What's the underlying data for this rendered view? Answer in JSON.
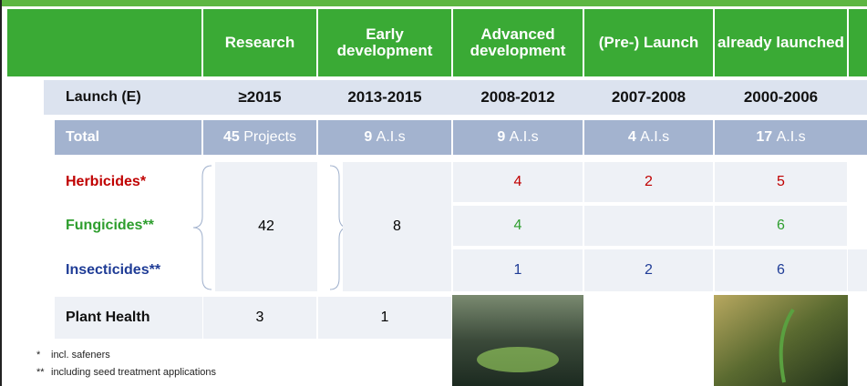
{
  "header": {
    "columns": [
      "Research",
      "Early development",
      "Advanced development",
      "(Pre-) Launch",
      "already launched"
    ]
  },
  "launch_row": {
    "label": "Launch (E)",
    "values": [
      "≥2015",
      "2013-2015",
      "2008-2012",
      "2007-2008",
      "2000-2006"
    ]
  },
  "total_row": {
    "label": "Total",
    "values": [
      {
        "number": "45",
        "unit": "Projects"
      },
      {
        "number": "9",
        "unit": "A.I.s"
      },
      {
        "number": "9",
        "unit": "A.I.s"
      },
      {
        "number": "4",
        "unit": "A.I.s"
      },
      {
        "number": "17",
        "unit": "A.I.s"
      }
    ]
  },
  "groups": {
    "research": "42",
    "early": "8"
  },
  "rows": [
    {
      "label": "Herbicides*",
      "color": "#c00000",
      "values": [
        "4",
        "2",
        "5"
      ]
    },
    {
      "label": "Fungicides**",
      "color": "#2e9e2e",
      "values": [
        "4",
        null,
        "6"
      ]
    },
    {
      "label": "Insecticides**",
      "color": "#1f3c96",
      "values": [
        "1",
        "2",
        "6"
      ]
    }
  ],
  "plant_health": {
    "label": "Plant Health",
    "values": [
      "3",
      "1"
    ]
  },
  "footnotes": [
    {
      "mark": "*",
      "text": "incl. safeners"
    },
    {
      "mark": "**",
      "text": "including seed treatment applications"
    }
  ]
}
